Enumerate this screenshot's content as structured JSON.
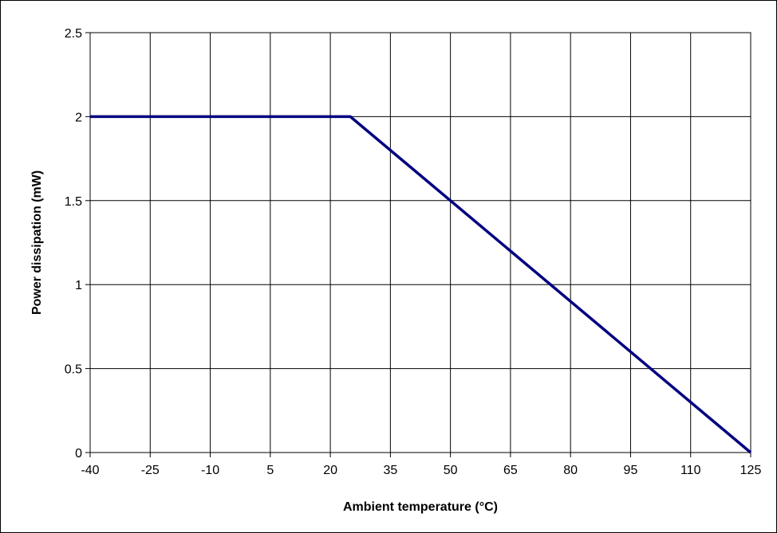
{
  "chart_data": {
    "type": "line",
    "title": "",
    "xlabel": "Ambient temperature (°C)",
    "ylabel": "Power dissipation (mW)",
    "xlim": [
      -40,
      125
    ],
    "ylim": [
      0,
      2.5
    ],
    "x_ticks": [
      "-40",
      "-25",
      "-10",
      "5",
      "20",
      "35",
      "50",
      "65",
      "80",
      "95",
      "110",
      "125"
    ],
    "y_ticks": [
      "0",
      "0.5",
      "1",
      "1.5",
      "2",
      "2.5"
    ],
    "grid": true,
    "series": [
      {
        "color": "#000080",
        "points": [
          {
            "x": -40,
            "y": 2
          },
          {
            "x": 25,
            "y": 2
          },
          {
            "x": 125,
            "y": 0
          }
        ]
      }
    ]
  }
}
